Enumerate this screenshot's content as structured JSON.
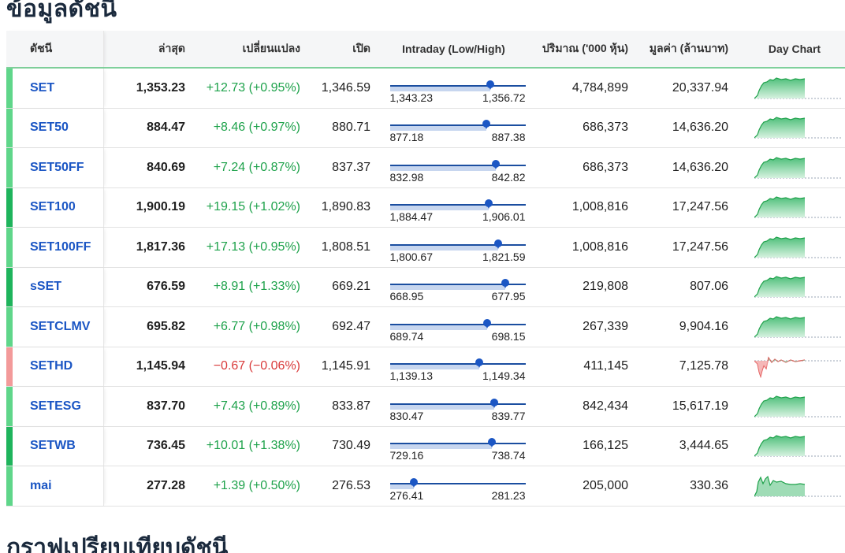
{
  "page_title": "ข้อมูลดัชนี",
  "section_title_2": "กราฟเปรียบเทียบดัชนี",
  "columns": {
    "name": "ดัชนี",
    "last": "ล่าสุด",
    "change": "เปลี่ยนแปลง",
    "open": "เปิด",
    "intraday": "Intraday (Low/High)",
    "volume": "ปริมาณ ('000 หุ้น)",
    "value": "มูลค่า (ล้านบาท)",
    "day_chart": "Day Chart"
  },
  "colors": {
    "up": "#1ea24b",
    "down": "#d93a3a",
    "link": "#1b56c4",
    "chart_up_fill": "#5cc384",
    "chart_down": "#e04a4a"
  },
  "rows": [
    {
      "name": "SET",
      "last": "1,353.23",
      "change": "+12.73 (+0.95%)",
      "open": "1,346.59",
      "low": "1,343.23",
      "high": "1,356.72",
      "position": 0.74,
      "volume": "4,784,899",
      "value": "20,337.94",
      "direction": "up",
      "shade": "light"
    },
    {
      "name": "SET50",
      "last": "884.47",
      "change": "+8.46 (+0.97%)",
      "open": "880.71",
      "low": "877.18",
      "high": "887.38",
      "position": 0.71,
      "volume": "686,373",
      "value": "14,636.20",
      "direction": "up",
      "shade": "light"
    },
    {
      "name": "SET50FF",
      "last": "840.69",
      "change": "+7.24 (+0.87%)",
      "open": "837.37",
      "low": "832.98",
      "high": "842.82",
      "position": 0.78,
      "volume": "686,373",
      "value": "14,636.20",
      "direction": "up",
      "shade": "light"
    },
    {
      "name": "SET100",
      "last": "1,900.19",
      "change": "+19.15 (+1.02%)",
      "open": "1,890.83",
      "low": "1,884.47",
      "high": "1,906.01",
      "position": 0.73,
      "volume": "1,008,816",
      "value": "17,247.56",
      "direction": "up",
      "shade": "dark"
    },
    {
      "name": "SET100FF",
      "last": "1,817.36",
      "change": "+17.13 (+0.95%)",
      "open": "1,808.51",
      "low": "1,800.67",
      "high": "1,821.59",
      "position": 0.8,
      "volume": "1,008,816",
      "value": "17,247.56",
      "direction": "up",
      "shade": "light"
    },
    {
      "name": "sSET",
      "last": "676.59",
      "change": "+8.91 (+1.33%)",
      "open": "669.21",
      "low": "668.95",
      "high": "677.95",
      "position": 0.85,
      "volume": "219,808",
      "value": "807.06",
      "direction": "up",
      "shade": "dark"
    },
    {
      "name": "SETCLMV",
      "last": "695.82",
      "change": "+6.77 (+0.98%)",
      "open": "692.47",
      "low": "689.74",
      "high": "698.15",
      "position": 0.72,
      "volume": "267,339",
      "value": "9,904.16",
      "direction": "up",
      "shade": "light"
    },
    {
      "name": "SETHD",
      "last": "1,145.94",
      "change": "−0.67 (−0.06%)",
      "open": "1,145.91",
      "low": "1,139.13",
      "high": "1,149.34",
      "position": 0.66,
      "volume": "411,145",
      "value": "7,125.78",
      "direction": "down",
      "shade": "neg"
    },
    {
      "name": "SETESG",
      "last": "837.70",
      "change": "+7.43 (+0.89%)",
      "open": "833.87",
      "low": "830.47",
      "high": "839.77",
      "position": 0.77,
      "volume": "842,434",
      "value": "15,617.19",
      "direction": "up",
      "shade": "light"
    },
    {
      "name": "SETWB",
      "last": "736.45",
      "change": "+10.01 (+1.38%)",
      "open": "730.49",
      "low": "729.16",
      "high": "738.74",
      "position": 0.75,
      "volume": "166,125",
      "value": "3,444.65",
      "direction": "up",
      "shade": "dark"
    },
    {
      "name": "mai",
      "last": "277.28",
      "change": "+1.39 (+0.50%)",
      "open": "276.53",
      "low": "276.41",
      "high": "281.23",
      "position": 0.18,
      "volume": "205,000",
      "value": "330.36",
      "direction": "up",
      "shade": "light"
    }
  ]
}
